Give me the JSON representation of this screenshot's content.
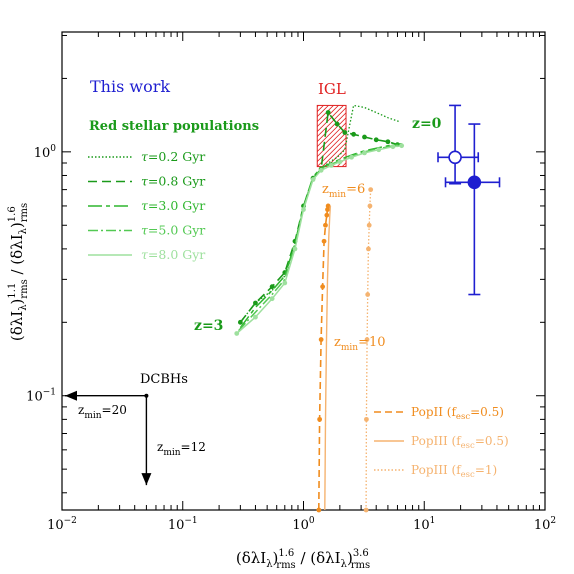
{
  "chart_data": {
    "type": "line",
    "x_axis": {
      "scale": "log",
      "range": [
        0.01,
        100
      ],
      "ticks": [
        {
          "value": 0.01,
          "base": "10",
          "exp": "−2"
        },
        {
          "value": 0.1,
          "base": "10",
          "exp": "−1"
        },
        {
          "value": 1,
          "base": "10",
          "exp": "0"
        },
        {
          "value": 10,
          "base": "10",
          "exp": "1"
        },
        {
          "value": 100,
          "base": "10",
          "exp": "2"
        }
      ],
      "label": {
        "main": "(δλI",
        "sub1": "λ",
        "part2": ")",
        "sup2": "1.6",
        "sub2": "rms",
        "part3": " / (δλI",
        "sub3": "λ",
        "part4": ")",
        "sup4": "3.6",
        "sub4": "rms"
      }
    },
    "y_axis": {
      "scale": "log",
      "range": [
        0.034,
        3.1
      ],
      "ticks": [
        {
          "value": 0.1,
          "base": "10",
          "exp": "−1"
        },
        {
          "value": 1,
          "base": "10",
          "exp": "0"
        }
      ],
      "label": {
        "main": "(δλI",
        "sub1": "λ",
        "part2": ")",
        "sup2": "1.1",
        "sub2": "rms",
        "part3": " / (δλI",
        "sub3": "λ",
        "part4": ")",
        "sup4": "1.6",
        "sub4": "rms"
      }
    },
    "texts": {
      "this_work": "This work",
      "red_pop": "Red stellar populations",
      "igl": "IGL",
      "z0": "z=0",
      "z3": "z=3",
      "zmin6": {
        "main": "z",
        "sub": "min",
        "rest": "=6"
      },
      "zmin10": {
        "main": "z",
        "sub": "min",
        "rest": "=10"
      },
      "dcbh": "DCBHs",
      "zmin20": {
        "main": "z",
        "sub": "min",
        "rest": "=20"
      },
      "zmin12": {
        "main": "z",
        "sub": "min",
        "rest": "=12"
      }
    },
    "legend_tau": [
      {
        "prefix": "τ",
        "label": "=0.2 Gyr",
        "color": "#1a9a1a",
        "dash": "1.5,2"
      },
      {
        "prefix": "τ",
        "label": "=0.8 Gyr",
        "color": "#1a9a1a",
        "dash": "9,5"
      },
      {
        "prefix": "τ",
        "label": "=3.0 Gyr",
        "color": "#2fb62f",
        "dash": "14,4,4,4"
      },
      {
        "prefix": "τ",
        "label": "=5.0 Gyr",
        "color": "#53c953",
        "dash": "10,3,2,3"
      },
      {
        "prefix": "τ",
        "label": "=8.0 Gyr",
        "color": "#9ee09e",
        "dash": ""
      }
    ],
    "legend_pop": [
      {
        "label": "PopII (f",
        "sub": "esc",
        "rest": "=0.5)",
        "color": "#f08c1e",
        "dash": "7,4"
      },
      {
        "label": "PopIII (f",
        "sub": "esc",
        "rest": "=0.5)",
        "color": "#f5b370",
        "dash": ""
      },
      {
        "label": "PopIII (f",
        "sub": "esc",
        "rest": "=1)",
        "color": "#f5b370",
        "dash": "1.5,2"
      }
    ],
    "igl_box": {
      "x": [
        1.3,
        2.25
      ],
      "y": [
        0.87,
        1.55
      ],
      "color": "#e02020"
    },
    "this_work_points": [
      {
        "x": 18,
        "y": 0.95,
        "xerr": [
          13,
          28
        ],
        "yerr": [
          0.74,
          1.55
        ],
        "filled": false
      },
      {
        "x": 26,
        "y": 0.75,
        "xerr": [
          15,
          42
        ],
        "yerr": [
          0.26,
          1.3
        ],
        "filled": true
      }
    ],
    "dcbh_point": {
      "x": 0.05,
      "y": 0.1
    },
    "series": [
      {
        "color": "#1a9a1a",
        "dash": "1.5,2",
        "width": 1.3,
        "markers": false,
        "x": [
          0.3,
          0.4,
          0.55,
          0.7,
          0.85,
          1.0,
          1.2,
          1.4,
          1.6,
          1.9,
          2.2,
          2.6,
          3.2,
          4.0,
          5.0,
          6.2
        ],
        "y": [
          0.2,
          0.24,
          0.27,
          0.31,
          0.42,
          0.6,
          0.78,
          0.85,
          0.9,
          0.95,
          1.02,
          1.55,
          1.52,
          1.45,
          1.38,
          1.33
        ]
      },
      {
        "color": "#1a9a1a",
        "dash": "9,5",
        "width": 1.6,
        "markers": true,
        "x": [
          0.3,
          0.4,
          0.55,
          0.7,
          0.85,
          1.0,
          1.2,
          1.4,
          1.6,
          1.9,
          2.2,
          2.6,
          3.2,
          4.0,
          5.0,
          6.0
        ],
        "y": [
          0.2,
          0.24,
          0.28,
          0.32,
          0.43,
          0.6,
          0.78,
          0.85,
          1.45,
          1.3,
          1.2,
          1.18,
          1.15,
          1.12,
          1.1,
          1.07
        ]
      },
      {
        "color": "#2fb62f",
        "dash": "14,4,4,4",
        "width": 1.5,
        "markers": false,
        "x": [
          0.3,
          0.4,
          0.55,
          0.7,
          0.85,
          1.0,
          1.2,
          1.4,
          1.7,
          2.0,
          2.5,
          3.2,
          4.2,
          5.5,
          6.5
        ],
        "y": [
          0.19,
          0.23,
          0.27,
          0.31,
          0.42,
          0.6,
          0.79,
          0.86,
          0.9,
          0.93,
          0.97,
          1.01,
          1.04,
          1.07,
          1.08
        ]
      },
      {
        "color": "#53c953",
        "dash": "10,3,2,3",
        "width": 1.5,
        "markers": false,
        "x": [
          0.29,
          0.4,
          0.55,
          0.7,
          0.85,
          1.0,
          1.2,
          1.4,
          1.7,
          2.0,
          2.5,
          3.2,
          4.2,
          5.5,
          6.5
        ],
        "y": [
          0.185,
          0.22,
          0.26,
          0.3,
          0.41,
          0.59,
          0.78,
          0.85,
          0.89,
          0.92,
          0.96,
          1.0,
          1.03,
          1.06,
          1.07
        ]
      },
      {
        "color": "#9ee09e",
        "dash": "",
        "width": 1.5,
        "markers": true,
        "x": [
          0.28,
          0.4,
          0.55,
          0.7,
          0.85,
          1.0,
          1.2,
          1.4,
          1.7,
          2.0,
          2.5,
          3.2,
          4.2,
          5.5,
          6.5
        ],
        "y": [
          0.18,
          0.21,
          0.25,
          0.29,
          0.4,
          0.58,
          0.77,
          0.84,
          0.88,
          0.91,
          0.95,
          0.99,
          1.02,
          1.05,
          1.06
        ]
      },
      {
        "color": "#f08c1e",
        "dash": "7,4",
        "width": 1.6,
        "markers": true,
        "x": [
          1.34,
          1.36,
          1.4,
          1.44,
          1.48,
          1.52,
          1.56,
          1.58,
          1.6
        ],
        "y": [
          0.034,
          0.08,
          0.17,
          0.28,
          0.43,
          0.5,
          0.55,
          0.58,
          0.6
        ]
      },
      {
        "color": "#f5b370",
        "dash": "",
        "width": 1.4,
        "markers": false,
        "x": [
          1.5,
          1.52,
          1.55,
          1.58,
          1.62,
          1.65,
          1.67
        ],
        "y": [
          0.034,
          0.08,
          0.17,
          0.3,
          0.45,
          0.55,
          0.6
        ]
      },
      {
        "color": "#f5b370",
        "dash": "1.5,2",
        "width": 1.3,
        "markers": true,
        "x": [
          3.3,
          3.32,
          3.36,
          3.4,
          3.45,
          3.5,
          3.55,
          3.6
        ],
        "y": [
          0.034,
          0.08,
          0.17,
          0.26,
          0.4,
          0.5,
          0.6,
          0.7
        ]
      }
    ]
  }
}
